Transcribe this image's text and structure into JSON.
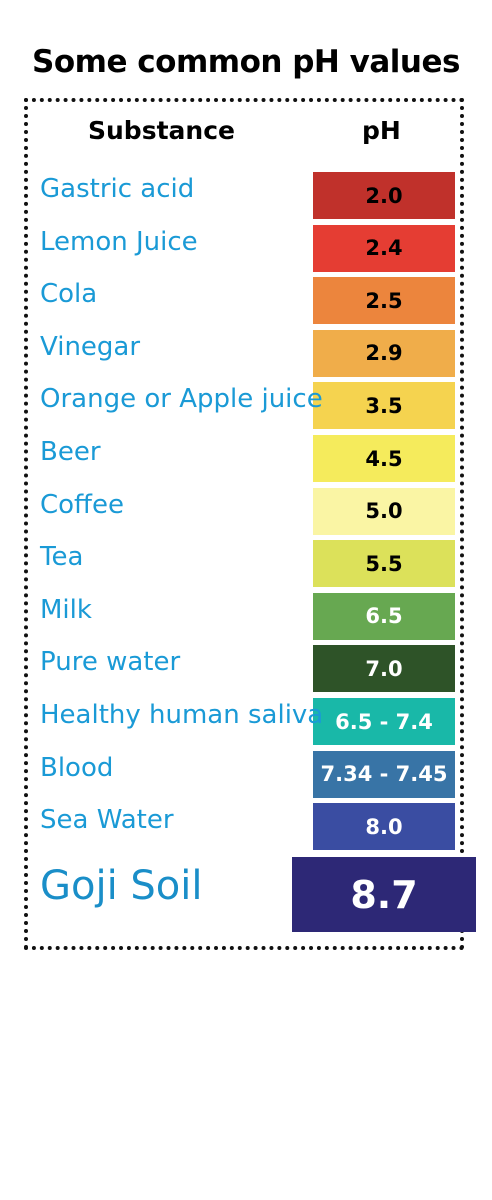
{
  "title": "Some common pH values",
  "headers": {
    "substance": "Substance",
    "ph": "pH"
  },
  "chart_data": {
    "type": "table",
    "title": "Some common pH values",
    "columns": [
      "Substance",
      "pH"
    ],
    "rows": [
      {
        "substance": "Gastric acid",
        "ph": "2.0",
        "color": "#c0312b",
        "text_color": "#000000"
      },
      {
        "substance": "Lemon Juice",
        "ph": "2.4",
        "color": "#e53d33",
        "text_color": "#000000"
      },
      {
        "substance": "Cola",
        "ph": "2.5",
        "color": "#ec853d",
        "text_color": "#000000"
      },
      {
        "substance": "Vinegar",
        "ph": "2.9",
        "color": "#f0ad4a",
        "text_color": "#000000"
      },
      {
        "substance": "Orange or Apple juice",
        "ph": "3.5",
        "color": "#f5d34f",
        "text_color": "#000000"
      },
      {
        "substance": "Beer",
        "ph": "4.5",
        "color": "#f5eb5c",
        "text_color": "#000000"
      },
      {
        "substance": "Coffee",
        "ph": "5.0",
        "color": "#faf5a4",
        "text_color": "#000000"
      },
      {
        "substance": "Tea",
        "ph": "5.5",
        "color": "#dce15a",
        "text_color": "#000000"
      },
      {
        "substance": "Milk",
        "ph": "6.5",
        "color": "#67a851",
        "text_color": "#ffffff"
      },
      {
        "substance": "Pure water",
        "ph": "7.0",
        "color": "#2e5328",
        "text_color": "#ffffff"
      },
      {
        "substance": "Healthy human saliva",
        "ph": "6.5 - 7.4",
        "color": "#19b8a8",
        "text_color": "#ffffff"
      },
      {
        "substance": "Blood",
        "ph": "7.34 - 7.45",
        "color": "#3874a6",
        "text_color": "#ffffff"
      },
      {
        "substance": "Sea Water",
        "ph": "8.0",
        "color": "#3a4da2",
        "text_color": "#ffffff"
      },
      {
        "substance": "Goji Soil",
        "ph": "8.7",
        "color": "#2d2876",
        "text_color": "#ffffff",
        "highlight": true
      }
    ]
  }
}
